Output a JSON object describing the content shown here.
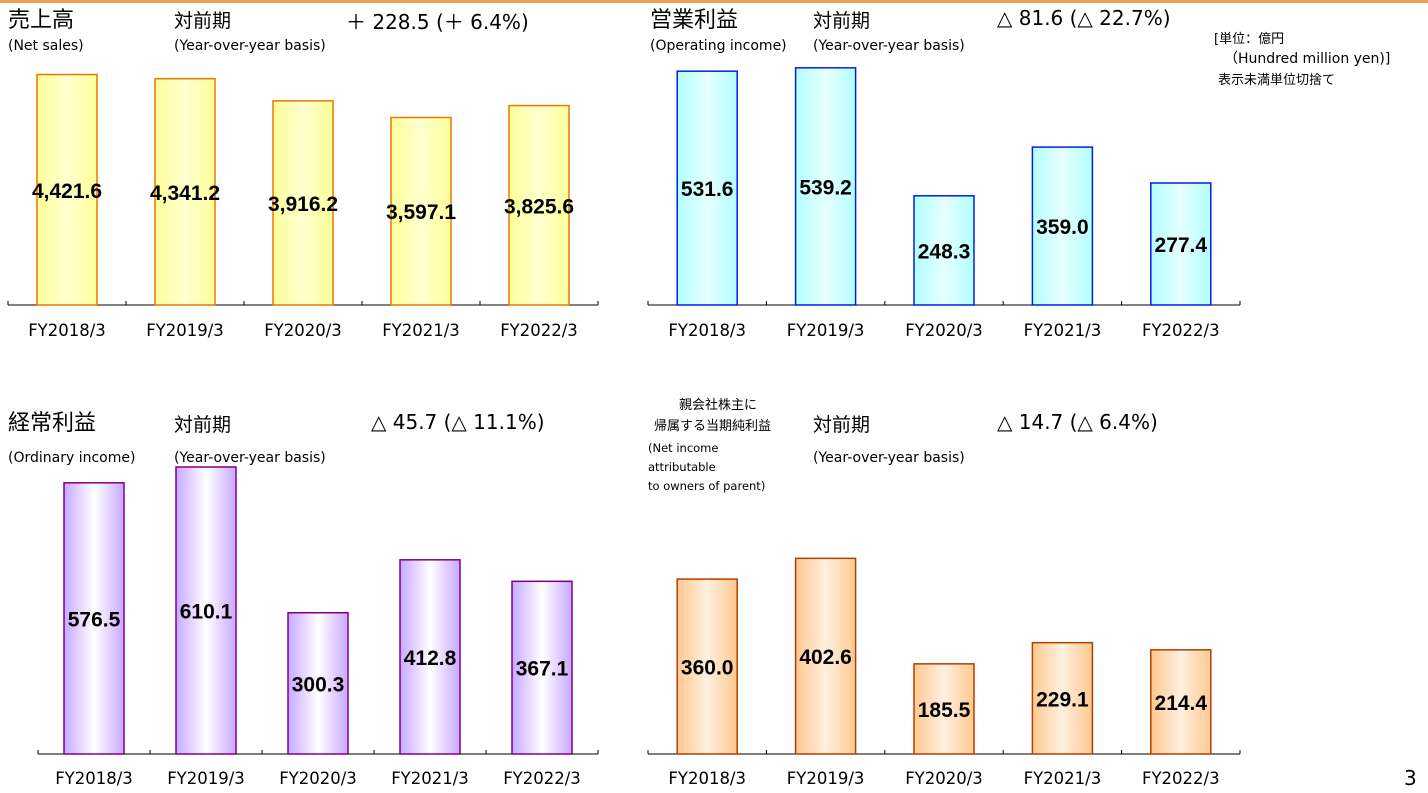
{
  "unit_note": [
    "[単位：億円",
    "（Hundred million yen)]",
    "表示未満単位切捨て"
  ],
  "page_number": "3",
  "panels": [
    {
      "title": "売上高",
      "title_en": "(Net sales)",
      "yoy_label": "対前期",
      "yoy_en": "(Year-over-year basis)",
      "change": "＋ 228.5 (＋ 6.4%)"
    },
    {
      "title": "営業利益",
      "title_en": "(Operating income)",
      "yoy_label": "対前期",
      "yoy_en": "(Year-over-year basis)",
      "change": "△ 81.6 (△ 22.7%)"
    },
    {
      "title": "経常利益",
      "title_en": "(Ordinary income)",
      "yoy_label": "対前期",
      "yoy_en": "(Year-over-year basis)",
      "change": "△ 45.7 (△ 11.1%)"
    },
    {
      "title_lines": [
        "親会社株主に",
        "帰属する当期純利益"
      ],
      "title_en_lines": [
        "(Net income",
        "attributable",
        "to owners of parent)"
      ],
      "yoy_label": "対前期",
      "yoy_en": "(Year-over-year basis)",
      "change": "△ 14.7 (△ 6.4%)"
    }
  ],
  "chart_data": [
    {
      "type": "bar",
      "title": "売上高",
      "categories": [
        "FY2018/3",
        "FY2019/3",
        "FY2020/3",
        "FY2021/3",
        "FY2022/3"
      ],
      "values": [
        4421.6,
        4341.2,
        3916.2,
        3597.1,
        3825.6
      ],
      "labels": [
        "4,421.6",
        "4,341.2",
        "3,916.2",
        "3,597.1",
        "3,825.6"
      ],
      "ylim": [
        0,
        4700
      ],
      "colors": {
        "fill_light": "#ffffd0",
        "fill_mid": "#ffff99",
        "stroke": "#e87800"
      }
    },
    {
      "type": "bar",
      "title": "営業利益",
      "categories": [
        "FY2018/3",
        "FY2019/3",
        "FY2020/3",
        "FY2021/3",
        "FY2022/3"
      ],
      "values": [
        531.6,
        539.2,
        248.3,
        359.0,
        277.4
      ],
      "labels": [
        "531.6",
        "539.2",
        "248.3",
        "359.0",
        "277.4"
      ],
      "ylim": [
        0,
        557
      ],
      "colors": {
        "fill_light": "#e6ffff",
        "fill_mid": "#b3ffff",
        "stroke": "#0020e0"
      }
    },
    {
      "type": "bar",
      "title": "経常利益",
      "categories": [
        "FY2018/3",
        "FY2019/3",
        "FY2020/3",
        "FY2021/3",
        "FY2022/3"
      ],
      "values": [
        576.5,
        610.1,
        300.3,
        412.8,
        367.1
      ],
      "labels": [
        "576.5",
        "610.1",
        "300.3",
        "412.8",
        "367.1"
      ],
      "ylim": [
        0,
        625
      ],
      "colors": {
        "fill_light": "#ffffff",
        "fill_mid": "#c8a8ff",
        "stroke": "#800080"
      }
    },
    {
      "type": "bar",
      "title": "親会社株主に帰属する当期純利益",
      "categories": [
        "FY2018/3",
        "FY2019/3",
        "FY2020/3",
        "FY2021/3",
        "FY2022/3"
      ],
      "values": [
        360.0,
        402.6,
        185.5,
        229.1,
        214.4
      ],
      "labels": [
        "360.0",
        "402.6",
        "185.5",
        "229.1",
        "214.4"
      ],
      "ylim": [
        0,
        605
      ],
      "colors": {
        "fill_light": "#fff0e0",
        "fill_mid": "#ffc890",
        "stroke": "#b04000"
      }
    }
  ]
}
